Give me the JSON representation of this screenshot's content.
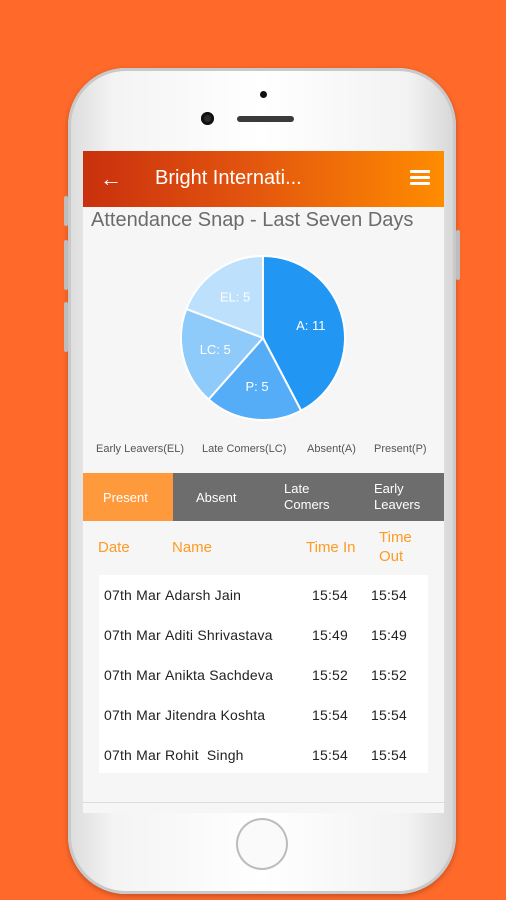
{
  "app": {
    "title": "Bright Internati...",
    "back_icon": "arrow-left-icon",
    "menu_icon": "hamburger-menu-icon"
  },
  "snapshot": {
    "title": "Attendance Snap - Last Seven Days"
  },
  "chart_data": {
    "type": "pie",
    "slices": [
      {
        "label": "A: 11",
        "key": "A",
        "value": 11,
        "color": "#2196f3"
      },
      {
        "label": "P: 5",
        "key": "P",
        "value": 5,
        "color": "#55adf7"
      },
      {
        "label": "LC: 5",
        "key": "LC",
        "value": 5,
        "color": "#8ecbfb"
      },
      {
        "label": "EL: 5",
        "key": "EL",
        "value": 5,
        "color": "#bde0fd"
      }
    ],
    "legend": [
      "Early Leavers(EL)",
      "Late Comers(LC)",
      "Absent(A)",
      "Present(P)"
    ]
  },
  "tabs": [
    {
      "label": "Present",
      "active": true
    },
    {
      "label": "Absent",
      "active": false
    },
    {
      "label": "Late\nComers",
      "active": false
    },
    {
      "label": "Early\nLeavers",
      "active": false
    }
  ],
  "table": {
    "headers": {
      "date": "Date",
      "name": "Name",
      "time_in": "Time In",
      "time_out": "Time\nOut"
    },
    "rows": [
      {
        "date": "07th Mar",
        "name": "Adarsh Jain",
        "time_in": "15:54",
        "time_out": "15:54"
      },
      {
        "date": "07th Mar",
        "name": "Aditi Shrivastava",
        "time_in": "15:49",
        "time_out": "15:49"
      },
      {
        "date": "07th Mar",
        "name": "Anikta Sachdeva",
        "time_in": "15:52",
        "time_out": "15:52"
      },
      {
        "date": "07th Mar",
        "name": "Jitendra Koshta",
        "time_in": "15:54",
        "time_out": "15:54"
      },
      {
        "date": "07th Mar",
        "name": "Rohit  Singh",
        "time_in": "15:54",
        "time_out": "15:54"
      }
    ]
  },
  "colors": {
    "background": "#ff6a2b",
    "appbar_start": "#c9300d",
    "appbar_end": "#ff8c00",
    "accent": "#ff9a3c",
    "tab_bg": "#6d6d6d"
  }
}
